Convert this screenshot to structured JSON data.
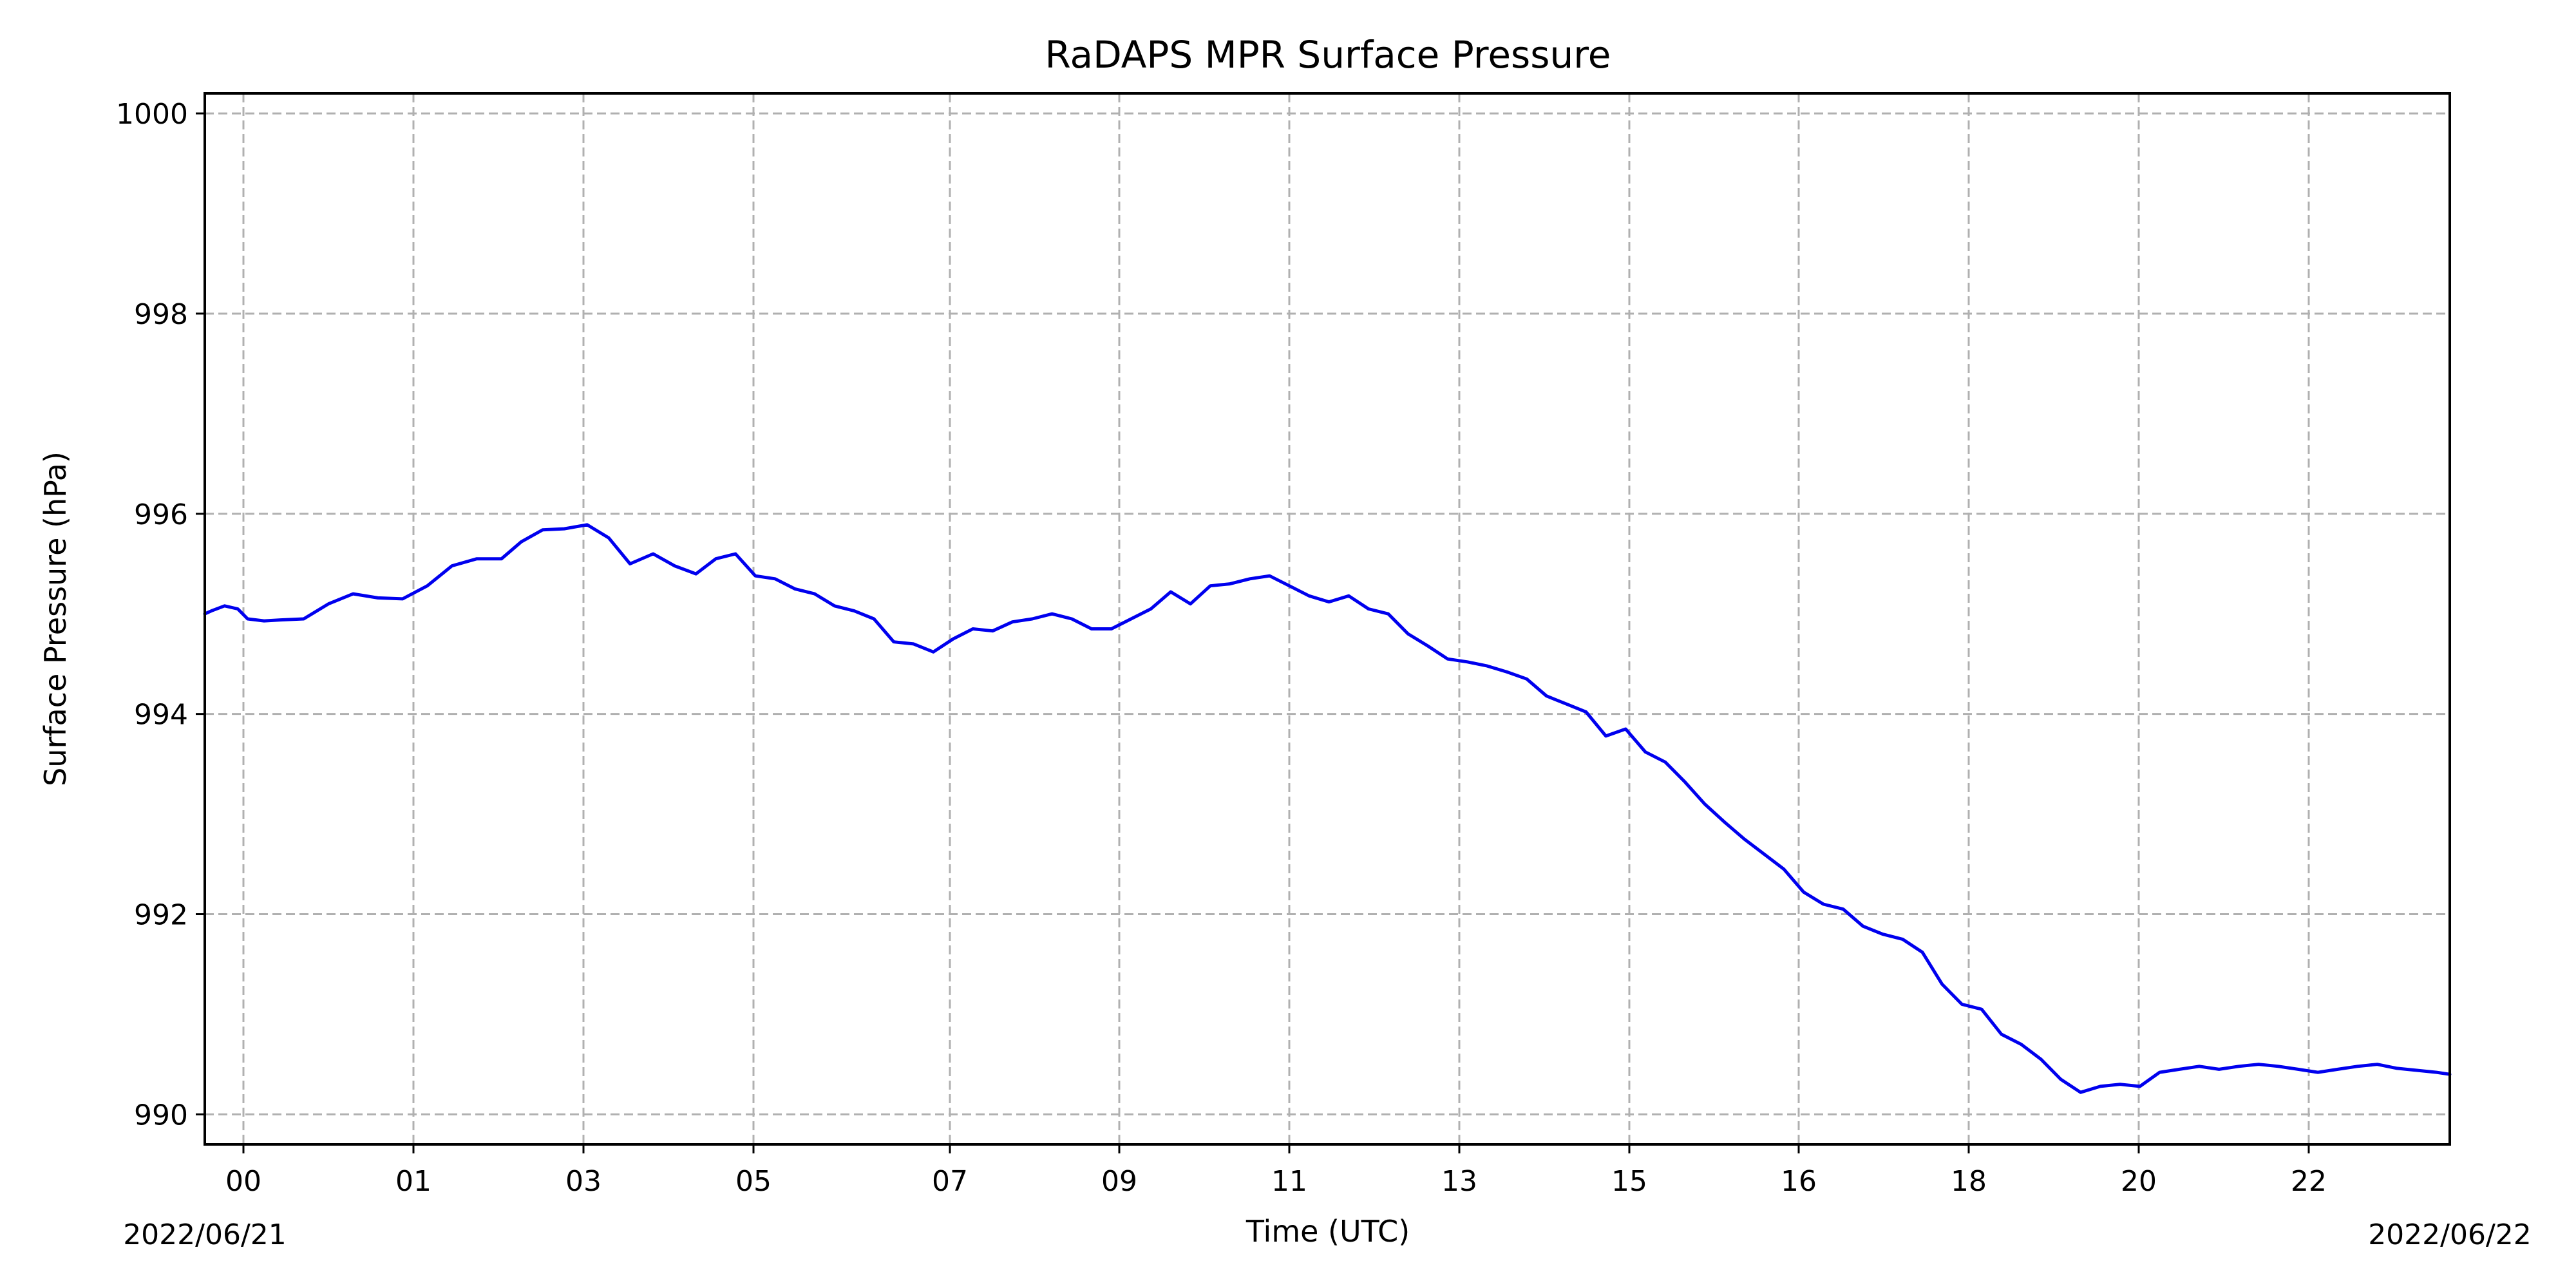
{
  "chart_data": {
    "type": "line",
    "title": "RaDAPS MPR Surface Pressure",
    "xlabel": "Time (UTC)",
    "ylabel": "Surface Pressure (hPa)",
    "date_start": "2022/06/21",
    "date_end": "2022/06/22",
    "grid": true,
    "ylim": [
      989.7,
      1000.2
    ],
    "yticks": [
      990,
      992,
      994,
      996,
      998,
      1000
    ],
    "xticks": [
      "00",
      "01",
      "03",
      "05",
      "07",
      "09",
      "11",
      "13",
      "15",
      "16",
      "18",
      "20",
      "22"
    ],
    "series": [
      {
        "color": "#0000ee",
        "x": [
          0,
          4,
          12,
          20,
          26,
          36,
          46,
          60,
          75,
          90,
          105,
          120,
          135,
          150,
          165,
          180,
          192,
          205,
          218,
          232,
          245,
          258,
          272,
          285,
          298,
          310,
          322,
          334,
          346,
          358,
          370,
          382,
          394,
          406,
          418,
          430,
          442,
          454,
          466,
          478,
          490,
          502,
          514,
          526,
          538,
          550,
          562,
          574,
          586,
          598,
          610,
          622,
          634,
          646,
          658,
          670,
          682,
          694,
          706,
          718,
          730,
          742,
          754,
          766,
          778,
          790,
          802,
          814,
          826,
          838,
          850,
          862,
          874,
          886,
          898,
          910,
          922,
          934,
          946,
          958,
          970,
          982,
          994,
          1006,
          1018,
          1030,
          1042,
          1054,
          1066,
          1078,
          1090,
          1102,
          1114,
          1126,
          1138,
          1150,
          1162,
          1174,
          1186,
          1198,
          1210,
          1222,
          1234,
          1246,
          1258,
          1270,
          1282,
          1294,
          1306,
          1318,
          1330,
          1342,
          1354,
          1362
        ],
        "y": [
          995.0,
          995.03,
          995.08,
          995.05,
          994.95,
          994.93,
          994.94,
          994.95,
          995.1,
          995.2,
          995.16,
          995.15,
          995.28,
          995.48,
          995.55,
          995.55,
          995.72,
          995.84,
          995.85,
          995.89,
          995.76,
          995.5,
          995.6,
          995.48,
          995.4,
          995.55,
          995.6,
          995.38,
          995.35,
          995.25,
          995.2,
          995.08,
          995.03,
          994.95,
          994.72,
          994.7,
          994.62,
          994.75,
          994.85,
          994.83,
          994.92,
          994.95,
          995.0,
          994.95,
          994.85,
          994.85,
          994.95,
          995.05,
          995.22,
          995.1,
          995.28,
          995.3,
          995.35,
          995.38,
          995.28,
          995.18,
          995.12,
          995.18,
          995.05,
          995.0,
          994.8,
          994.68,
          994.55,
          994.52,
          994.48,
          994.42,
          994.35,
          994.18,
          994.1,
          994.02,
          993.78,
          993.85,
          993.62,
          993.52,
          993.32,
          993.1,
          992.92,
          992.75,
          992.6,
          992.45,
          992.22,
          992.1,
          992.05,
          991.88,
          991.8,
          991.75,
          991.62,
          991.3,
          991.1,
          991.05,
          990.8,
          990.7,
          990.55,
          990.35,
          990.22,
          990.28,
          990.3,
          990.28,
          990.42,
          990.45,
          990.48,
          990.45,
          990.48,
          990.5,
          990.48,
          990.45,
          990.42,
          990.45,
          990.48,
          990.5,
          990.46,
          990.44,
          990.42,
          990.4
        ]
      }
    ]
  }
}
